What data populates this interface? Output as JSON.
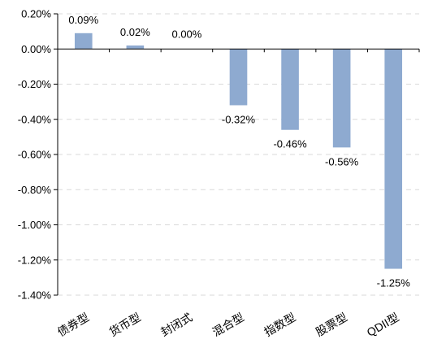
{
  "chart_data": {
    "type": "bar",
    "title": "",
    "xlabel": "",
    "ylabel": "",
    "categories": [
      "债券型",
      "货币型",
      "封闭式",
      "混合型",
      "指数型",
      "股票型",
      "QDII型"
    ],
    "values": [
      0.09,
      0.02,
      0.0,
      -0.32,
      -0.46,
      -0.56,
      -1.25
    ],
    "value_labels": [
      "0.09%",
      "0.02%",
      "0.00%",
      "-0.32%",
      "-0.46%",
      "-0.56%",
      "-1.25%"
    ],
    "ylim": [
      -1.4,
      0.2
    ],
    "yticks": [
      0.2,
      0.0,
      -0.2,
      -0.4,
      -0.6,
      -0.8,
      -1.0,
      -1.2,
      -1.4
    ],
    "ytick_labels": [
      "0.20%",
      "0.00%",
      "-0.20%",
      "-0.40%",
      "-0.60%",
      "-0.80%",
      "-1.00%",
      "-1.20%",
      "-1.40%"
    ],
    "grid": true,
    "legend": "none",
    "bar_color": "#8eaad0",
    "grid_color": "#d9d9d9",
    "axis_color": "#000000"
  }
}
